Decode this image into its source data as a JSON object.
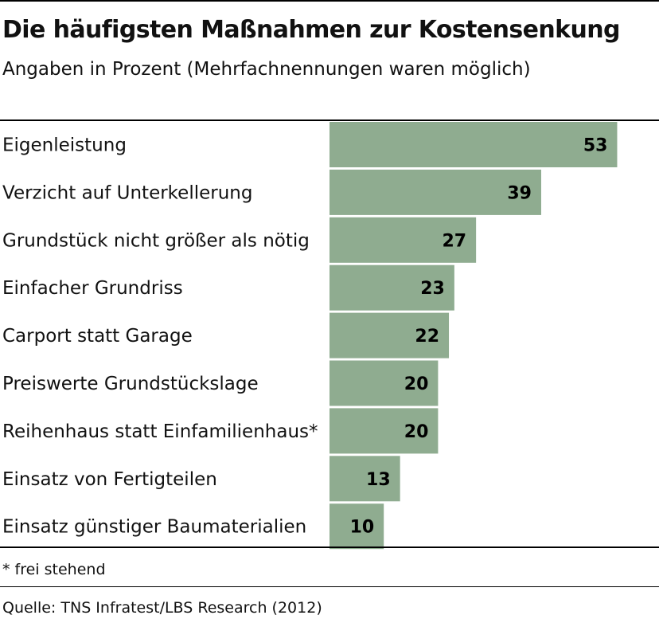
{
  "chart_data": {
    "type": "bar",
    "orientation": "horizontal",
    "title": "Die häufigsten Maßnahmen zur Kostensenkung",
    "subtitle": "Angaben in Prozent (Mehrfachnennungen waren möglich)",
    "categories": [
      "Eigenleistung",
      "Verzicht auf Unterkellerung",
      "Grundstück nicht größer als nötig",
      "Einfacher Grundriss",
      "Carport statt Garage",
      "Preiswerte Grundstückslage",
      "Reihenhaus statt Einfamilienhaus*",
      "Einsatz von Fertigteilen",
      "Einsatz günstiger Baumaterialien"
    ],
    "values": [
      53,
      39,
      27,
      23,
      22,
      20,
      20,
      13,
      10
    ],
    "xlim": [
      0,
      60
    ],
    "bar_color": "#8fac90",
    "gridlines": false,
    "legend": "none"
  },
  "footnote": "* frei stehend",
  "source": "Quelle: TNS Infratest/LBS Research (2012)"
}
